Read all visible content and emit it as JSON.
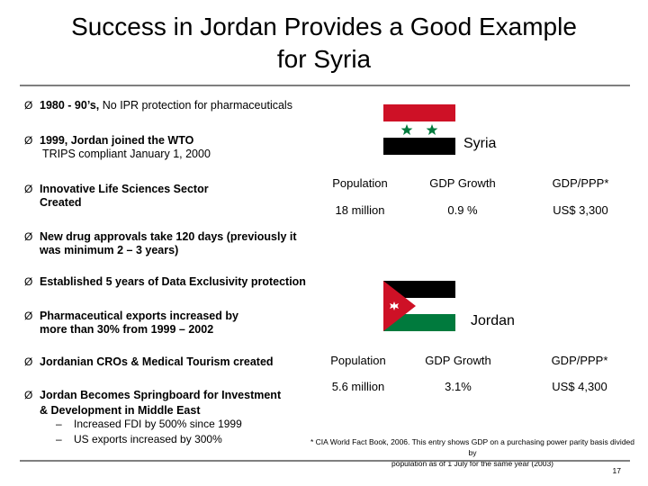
{
  "title_line1": "Success in Jordan Provides a Good Example",
  "title_line2": "for Syria",
  "bullets": [
    {
      "bold": "1980 - 90’s,",
      "rest": " No IPR protection for pharmaceuticals"
    },
    {
      "line1": "1999, Jordan joined the WTO",
      "line2": "TRIPS compliant January 1, 2000"
    },
    {
      "line1": "Innovative Life Sciences Sector",
      "line2": "Created"
    },
    {
      "line1": "New drug approvals take 120 days (previously it",
      "line2": "was minimum 2 – 3 years)"
    },
    {
      "line1": "Established 5 years of Data Exclusivity protection"
    },
    {
      "line1": "Pharmaceutical exports increased by",
      "line2": "more than 30% from 1999 – 2002"
    },
    {
      "line1": "Jordanian CROs & Medical Tourism created"
    },
    {
      "line1": "Jordan Becomes Springboard for Investment",
      "line2": "& Development in Middle East"
    }
  ],
  "sub_bullets": [
    {
      "dash": "–",
      "text": "Increased FDI by 500% since 1999"
    },
    {
      "dash": "–",
      "text": "US exports increased by 300%"
    }
  ],
  "bullet_marker": "Ø",
  "syria": {
    "name": "Syria",
    "headers": [
      "Population",
      "GDP Growth",
      "GDP/PPP*"
    ],
    "values": [
      "18 million",
      "0.9 %",
      "US$ 3,300"
    ]
  },
  "jordan": {
    "name": "Jordan",
    "headers": [
      "Population",
      "GDP Growth",
      "GDP/PPP*"
    ],
    "values": [
      "5.6 million",
      "3.1%",
      "US$ 4,300"
    ]
  },
  "footnote_line1": "* CIA World Fact Book, 2006. This entry shows GDP on a purchasing power parity basis divided by",
  "footnote_line2": "population as of 1 July for the same year (2003)",
  "page_number": "17",
  "colors": {
    "flag_red": "#ce1126",
    "flag_green": "#007a3d",
    "flag_black": "#000000",
    "star_green": "#007a3d",
    "rule": "#7f7f7f"
  }
}
